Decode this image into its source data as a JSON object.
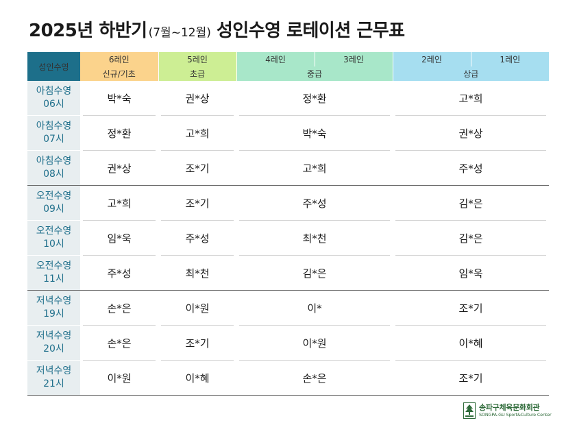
{
  "title": {
    "main": "2025년 하반기",
    "period": "(7월~12월)",
    "sub": "성인수영 로테이션 근무표"
  },
  "header": {
    "corner": "성인수영",
    "lanes": [
      "6레인",
      "5레인",
      "4레인",
      "3레인",
      "2레인",
      "1레인"
    ],
    "levels": [
      "신규/기초",
      "초급",
      "중급",
      "상급"
    ],
    "colors": {
      "corner": "#1d6f8a",
      "beginner": "#fbd38c",
      "elementary": "#cdee94",
      "intermediate": "#a8e7c9",
      "advanced": "#a6def0"
    }
  },
  "rows": [
    {
      "time_a": "아침수영",
      "time_b": "06시",
      "beginner": "박*숙",
      "elementary": "권*상",
      "intermediate": "정*환",
      "advanced": "고*희"
    },
    {
      "time_a": "아침수영",
      "time_b": "07시",
      "beginner": "정*환",
      "elementary": "고*희",
      "intermediate": "박*숙",
      "advanced": "권*상"
    },
    {
      "time_a": "아침수영",
      "time_b": "08시",
      "beginner": "권*상",
      "elementary": "조*기",
      "intermediate": "고*희",
      "advanced": "주*성"
    },
    {
      "time_a": "오전수영",
      "time_b": "09시",
      "beginner": "고*희",
      "elementary": "조*기",
      "intermediate": "주*성",
      "advanced": "김*은"
    },
    {
      "time_a": "오전수영",
      "time_b": "10시",
      "beginner": "임*욱",
      "elementary": "주*성",
      "intermediate": "최*천",
      "advanced": "김*은"
    },
    {
      "time_a": "오전수영",
      "time_b": "11시",
      "beginner": "주*성",
      "elementary": "최*천",
      "intermediate": "김*은",
      "advanced": "임*욱"
    },
    {
      "time_a": "저녁수영",
      "time_b": "19시",
      "beginner": "손*은",
      "elementary": "이*원",
      "intermediate": "이*",
      "advanced": "조*기"
    },
    {
      "time_a": "저녁수영",
      "time_b": "20시",
      "beginner": "손*은",
      "elementary": "조*기",
      "intermediate": "이*원",
      "advanced": "이*혜"
    },
    {
      "time_a": "저녁수영",
      "time_b": "21시",
      "beginner": "이*원",
      "elementary": "이*혜",
      "intermediate": "손*은",
      "advanced": "조*기"
    }
  ],
  "footer": {
    "logo_kr": "송파구체육문화회관",
    "logo_en": "SONGPA-GU Sport&Culture Center",
    "logo_icon": "tree-logo-icon"
  }
}
